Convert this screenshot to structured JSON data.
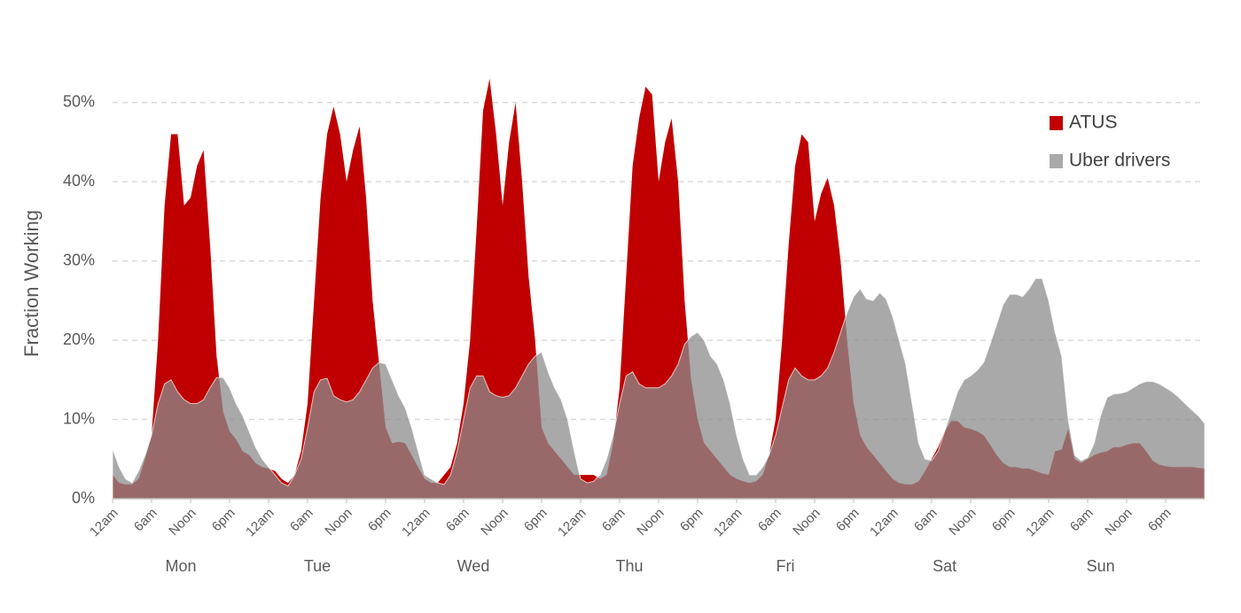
{
  "chart_data": {
    "type": "area",
    "y_label": "Fraction Working",
    "x": [
      0,
      1,
      2,
      3,
      4,
      5,
      6,
      7,
      8,
      9,
      10,
      11,
      12,
      13,
      14,
      15,
      16,
      17,
      18,
      19,
      20,
      21,
      22,
      23,
      24,
      25,
      26,
      27,
      28,
      29,
      30,
      31,
      32,
      33,
      34,
      35,
      36,
      37,
      38,
      39,
      40,
      41,
      42,
      43,
      44,
      45,
      46,
      47,
      48,
      49,
      50,
      51,
      52,
      53,
      54,
      55,
      56,
      57,
      58,
      59,
      60,
      61,
      62,
      63,
      64,
      65,
      66,
      67,
      68,
      69,
      70,
      71,
      72,
      73,
      74,
      75,
      76,
      77,
      78,
      79,
      80,
      81,
      82,
      83,
      84,
      85,
      86,
      87,
      88,
      89,
      90,
      91,
      92,
      93,
      94,
      95,
      96,
      97,
      98,
      99,
      100,
      101,
      102,
      103,
      104,
      105,
      106,
      107,
      108,
      109,
      110,
      111,
      112,
      113,
      114,
      115,
      116,
      117,
      118,
      119,
      120,
      121,
      122,
      123,
      124,
      125,
      126,
      127,
      128,
      129,
      130,
      131,
      132,
      133,
      134,
      135,
      136,
      137,
      138,
      139,
      140,
      141,
      142,
      143,
      144,
      145,
      146,
      147,
      148,
      149,
      150,
      151,
      152,
      153,
      154,
      155,
      156,
      157,
      158,
      159,
      160,
      161,
      162,
      163,
      164,
      165,
      166,
      167,
      168
    ],
    "series": [
      {
        "name": "ATUS",
        "color": "#c00000",
        "opacity": 1,
        "values": [
          3,
          2,
          1.8,
          1.8,
          2.5,
          5,
          8,
          20,
          37,
          46,
          46,
          37,
          38,
          42,
          44,
          32,
          18,
          11,
          8.5,
          7.5,
          6,
          5.5,
          4.5,
          4,
          3.8,
          3.5,
          2.5,
          2,
          3,
          6,
          12,
          25,
          38,
          46,
          49.5,
          46,
          40,
          44,
          47,
          38,
          25,
          17,
          9,
          7,
          7.2,
          7,
          5.5,
          4,
          2.5,
          2,
          2,
          3,
          4,
          7,
          12,
          20,
          34,
          49,
          53,
          46,
          37,
          45,
          50,
          40,
          28,
          20,
          9,
          7,
          6,
          5,
          4,
          3,
          3,
          3,
          3,
          2.5,
          3,
          7,
          14,
          28,
          42,
          48,
          52,
          51,
          40,
          45,
          48,
          40,
          25,
          15,
          10,
          7,
          6,
          5,
          4,
          3,
          2.5,
          2.2,
          2,
          2.2,
          3,
          5.5,
          10,
          20,
          32,
          42,
          46,
          45,
          35,
          38.5,
          40.5,
          37,
          30,
          20,
          12,
          8,
          6.5,
          5.5,
          4.5,
          3.5,
          2.5,
          2,
          1.8,
          1.8,
          2.2,
          3.5,
          5,
          6.5,
          8.5,
          9.8,
          9.8,
          9,
          8.8,
          8.5,
          8,
          6.8,
          5.5,
          4.5,
          4,
          4,
          3.8,
          3.8,
          3.5,
          3.2,
          3,
          6,
          6.2,
          8.8,
          5,
          4.5,
          5,
          5.5,
          5.8,
          6,
          6.5,
          6.5,
          6.8,
          7,
          7,
          6,
          4.8,
          4.3,
          4.1,
          4,
          4,
          4,
          4,
          3.9,
          3.8
        ]
      },
      {
        "name": "Uber drivers",
        "color": "#8c8c8c",
        "opacity": 0.75,
        "values": [
          6.3,
          4,
          2.5,
          2,
          3.5,
          5.5,
          8,
          12,
          14.5,
          15,
          13.5,
          12.5,
          12,
          12,
          12.5,
          14,
          15.3,
          15.3,
          14,
          12,
          10.5,
          8.5,
          6.5,
          5,
          4,
          3,
          2,
          1.6,
          3,
          5,
          9,
          13.5,
          15,
          15.2,
          13,
          12.5,
          12.2,
          12.5,
          13.5,
          15,
          16.5,
          17.2,
          17,
          15,
          13,
          11.5,
          9,
          6,
          3,
          2.5,
          2,
          1.8,
          3,
          6,
          10,
          14,
          15.5,
          15.5,
          13.5,
          13,
          12.8,
          13,
          14,
          15.5,
          17,
          18,
          18.5,
          16,
          14,
          12.5,
          10,
          6,
          2.5,
          2,
          2.2,
          3,
          5,
          8,
          12,
          15.5,
          16,
          14.5,
          14,
          14,
          14,
          14.5,
          15.5,
          17,
          19.5,
          20.5,
          21,
          20,
          18,
          17,
          15,
          12,
          8,
          5,
          3,
          3,
          4,
          5.5,
          8,
          11.5,
          15,
          16.5,
          15.5,
          15,
          15,
          15.5,
          16.5,
          18.5,
          21,
          23.5,
          25.5,
          26.5,
          25.2,
          25,
          26,
          25.2,
          23,
          20,
          17,
          12,
          7,
          5,
          4.8,
          6,
          8.5,
          11,
          13.5,
          15,
          15.5,
          16.2,
          17.2,
          19.5,
          22,
          24.5,
          25.8,
          25.8,
          25.5,
          26.5,
          27.8,
          27.8,
          25,
          21,
          18,
          10,
          5.5,
          4.8,
          5.2,
          7,
          10.5,
          12.8,
          13.2,
          13.3,
          13.5,
          14,
          14.5,
          14.8,
          14.8,
          14.5,
          14,
          13.5,
          12.8,
          12,
          11.2,
          10.5,
          9.5
        ]
      }
    ],
    "xlim": [
      0,
      168
    ],
    "xticks": [
      {
        "value": 0,
        "label": "12am"
      },
      {
        "value": 6,
        "label": "6am"
      },
      {
        "value": 12,
        "label": "Noon"
      },
      {
        "value": 18,
        "label": "6pm"
      },
      {
        "value": 24,
        "label": "12am"
      },
      {
        "value": 30,
        "label": "6am"
      },
      {
        "value": 36,
        "label": "Noon"
      },
      {
        "value": 42,
        "label": "6pm"
      },
      {
        "value": 48,
        "label": "12am"
      },
      {
        "value": 54,
        "label": "6am"
      },
      {
        "value": 60,
        "label": "Noon"
      },
      {
        "value": 66,
        "label": "6pm"
      },
      {
        "value": 72,
        "label": "12am"
      },
      {
        "value": 78,
        "label": "6am"
      },
      {
        "value": 84,
        "label": "Noon"
      },
      {
        "value": 90,
        "label": "6pm"
      },
      {
        "value": 96,
        "label": "12am"
      },
      {
        "value": 102,
        "label": "6am"
      },
      {
        "value": 108,
        "label": "Noon"
      },
      {
        "value": 114,
        "label": "6pm"
      },
      {
        "value": 120,
        "label": "12am"
      },
      {
        "value": 126,
        "label": "6am"
      },
      {
        "value": 132,
        "label": "Noon"
      },
      {
        "value": 138,
        "label": "6pm"
      },
      {
        "value": 144,
        "label": "12am"
      },
      {
        "value": 150,
        "label": "6am"
      },
      {
        "value": 156,
        "label": "Noon"
      },
      {
        "value": 162,
        "label": "6pm"
      }
    ],
    "day_labels": [
      {
        "value": 10.5,
        "label": "Mon"
      },
      {
        "value": 31.5,
        "label": "Tue"
      },
      {
        "value": 55.5,
        "label": "Wed"
      },
      {
        "value": 79.5,
        "label": "Thu"
      },
      {
        "value": 103.5,
        "label": "Fri"
      },
      {
        "value": 128,
        "label": "Sat"
      },
      {
        "value": 152,
        "label": "Sun"
      }
    ],
    "ylim": [
      0,
      55
    ],
    "yticks": [
      {
        "value": 0,
        "label": "0%"
      },
      {
        "value": 10,
        "label": "10%"
      },
      {
        "value": 20,
        "label": "20%"
      },
      {
        "value": 30,
        "label": "30%"
      },
      {
        "value": 40,
        "label": "40%"
      },
      {
        "value": 50,
        "label": "50%"
      }
    ],
    "grid": true,
    "legend": "top-right"
  }
}
